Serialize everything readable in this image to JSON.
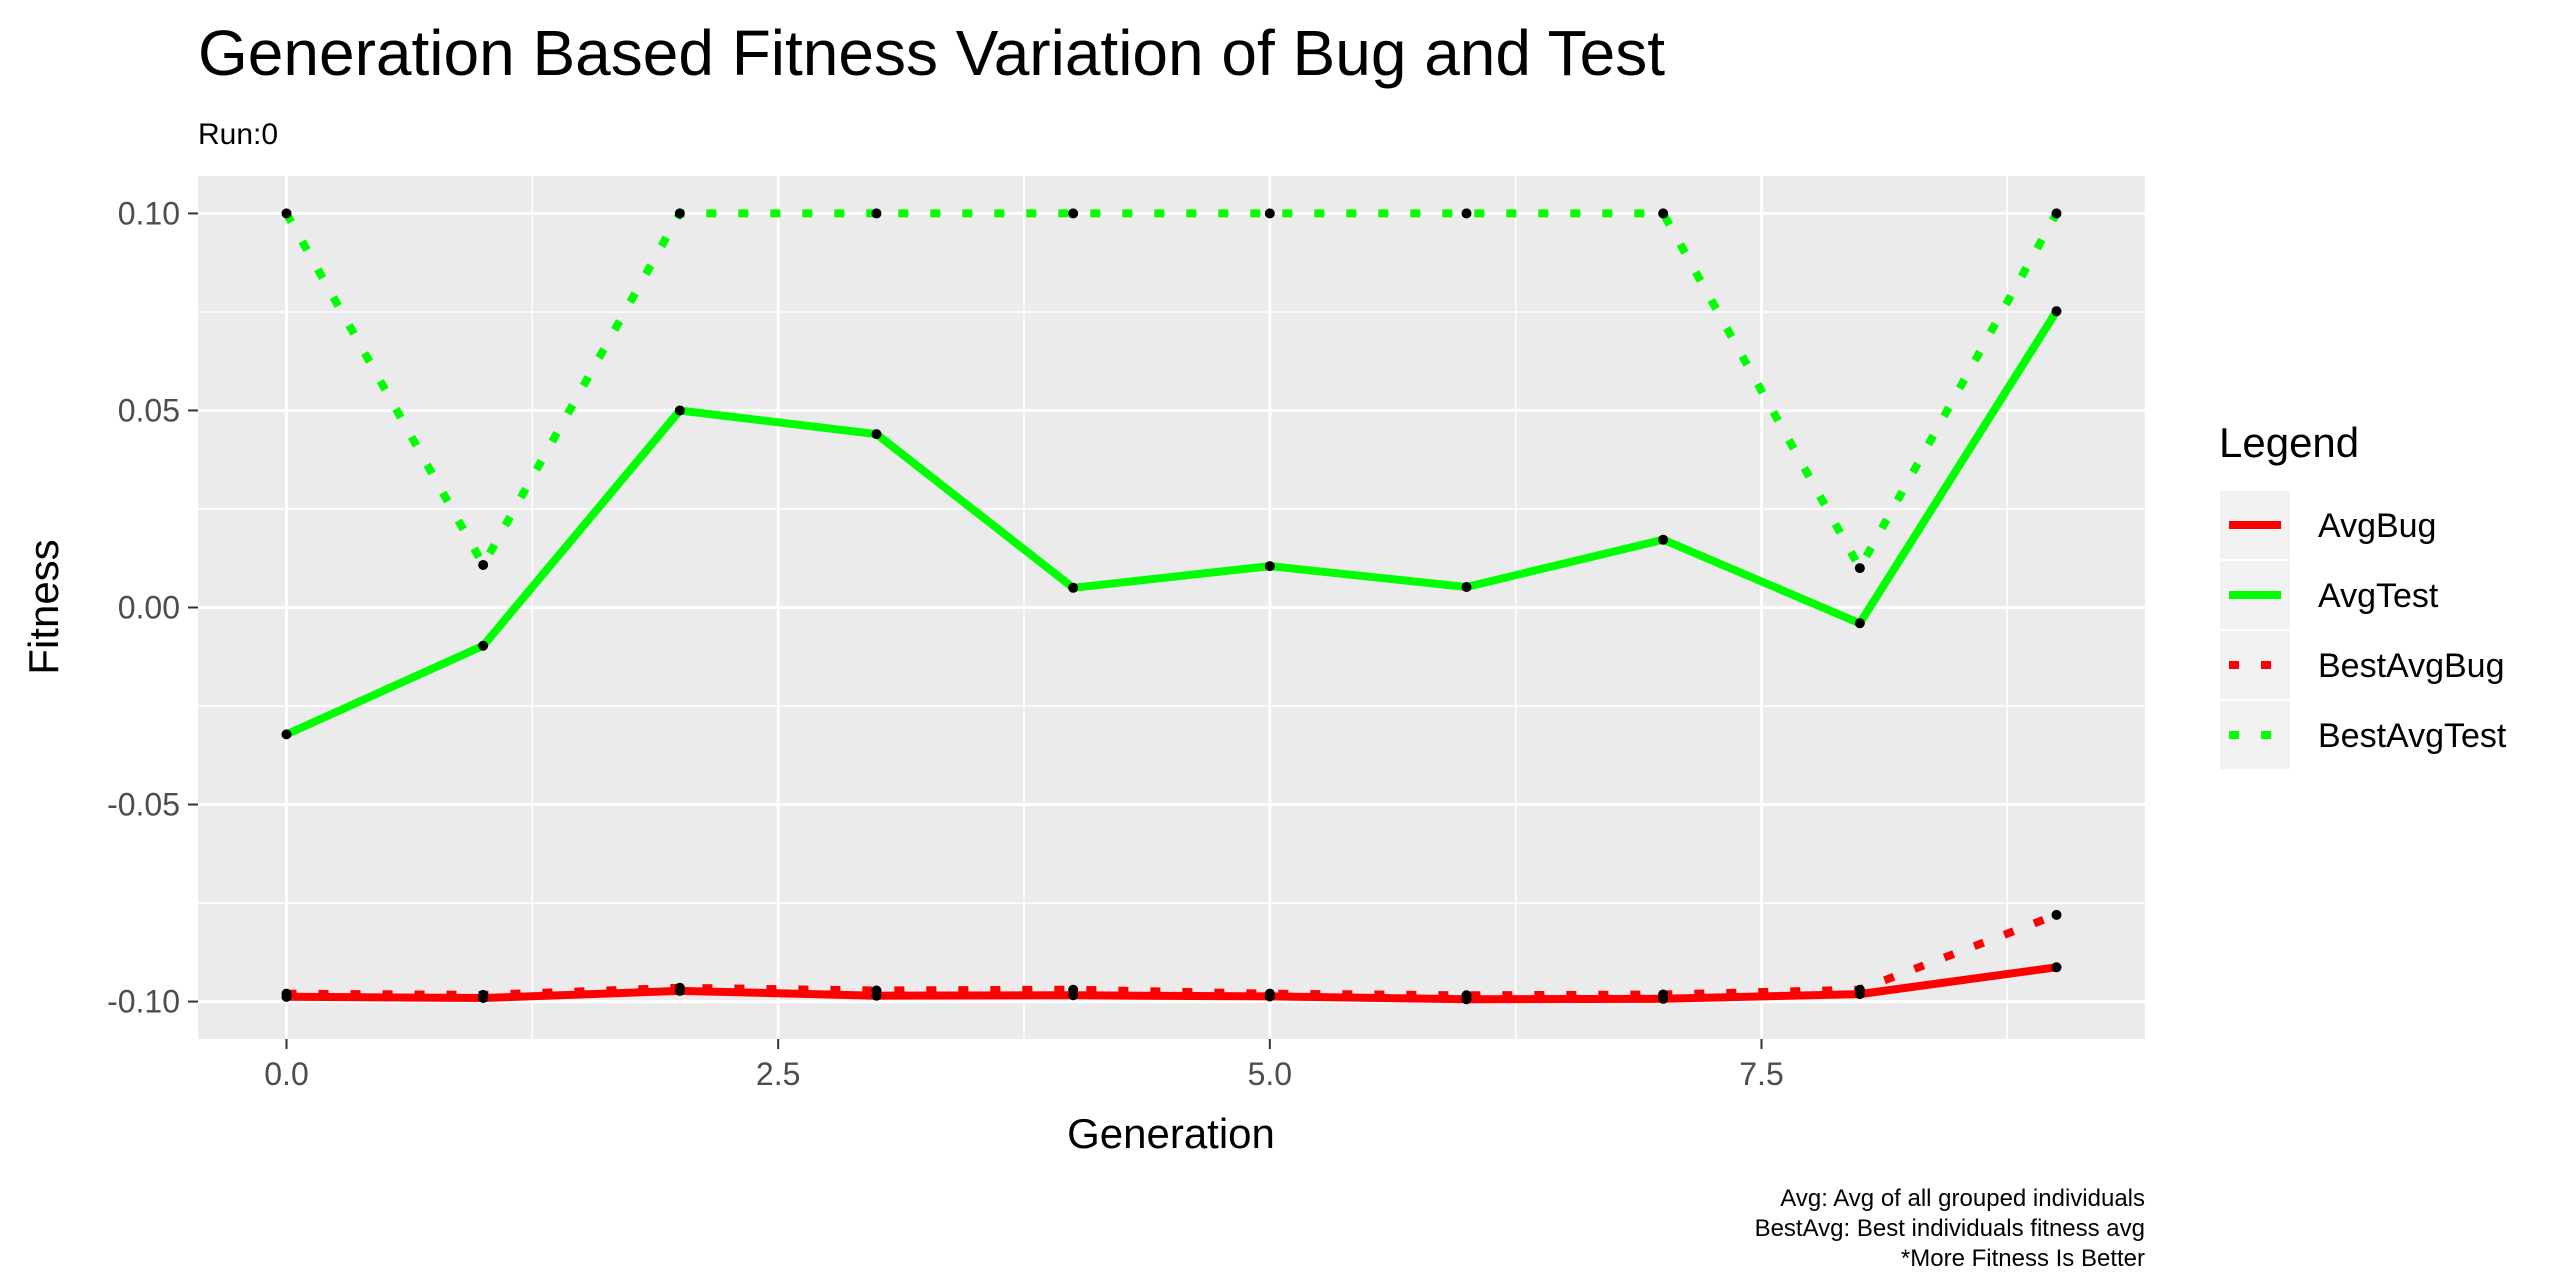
{
  "chart_data": {
    "type": "line",
    "title": "Generation Based Fitness Variation of Bug and Test",
    "subtitle": "Run:0",
    "xlabel": "Generation",
    "ylabel": "Fitness",
    "xlim": [
      -0.45,
      9.45
    ],
    "ylim": [
      -0.1095,
      0.1095
    ],
    "x_ticks": [
      0.0,
      2.5,
      5.0,
      7.5
    ],
    "x_tick_labels": [
      "0.0",
      "2.5",
      "5.0",
      "7.5"
    ],
    "y_ticks": [
      0.1,
      0.05,
      0.0,
      -0.05,
      -0.1
    ],
    "y_tick_labels": [
      "0.10",
      "0.05",
      "0.00",
      "-0.05",
      "-0.10"
    ],
    "grid": true,
    "legend": {
      "title": "Legend",
      "position": "right"
    },
    "x": [
      0,
      1,
      2,
      3,
      4,
      5,
      6,
      7,
      8,
      9
    ],
    "series": [
      {
        "name": "AvgBug",
        "color": "#ff0000",
        "dash": "solid",
        "values": [
          -0.0988,
          -0.0991,
          -0.0973,
          -0.0985,
          -0.0984,
          -0.0987,
          -0.0994,
          -0.0993,
          -0.0981,
          -0.0913
        ]
      },
      {
        "name": "AvgTest",
        "color": "#00ff00",
        "dash": "solid",
        "values": [
          -0.0322,
          -0.0097,
          0.05,
          0.044,
          0.005,
          0.0105,
          0.0052,
          0.0172,
          -0.004,
          0.0752
        ]
      },
      {
        "name": "BestAvgBug",
        "color": "#ff0000",
        "dash": "dotted",
        "values": [
          -0.098,
          -0.0983,
          -0.0965,
          -0.0972,
          -0.097,
          -0.098,
          -0.0984,
          -0.0982,
          -0.097,
          -0.078
        ]
      },
      {
        "name": "BestAvgTest",
        "color": "#00ff00",
        "dash": "dotted",
        "values": [
          0.1,
          0.0108,
          0.1,
          0.1,
          0.1,
          0.1,
          0.1,
          0.1,
          0.01,
          0.1
        ]
      }
    ],
    "caption": [
      "Avg: Avg of all grouped individuals",
      "BestAvg: Best individuals fitness avg",
      "*More Fitness Is Better"
    ]
  }
}
